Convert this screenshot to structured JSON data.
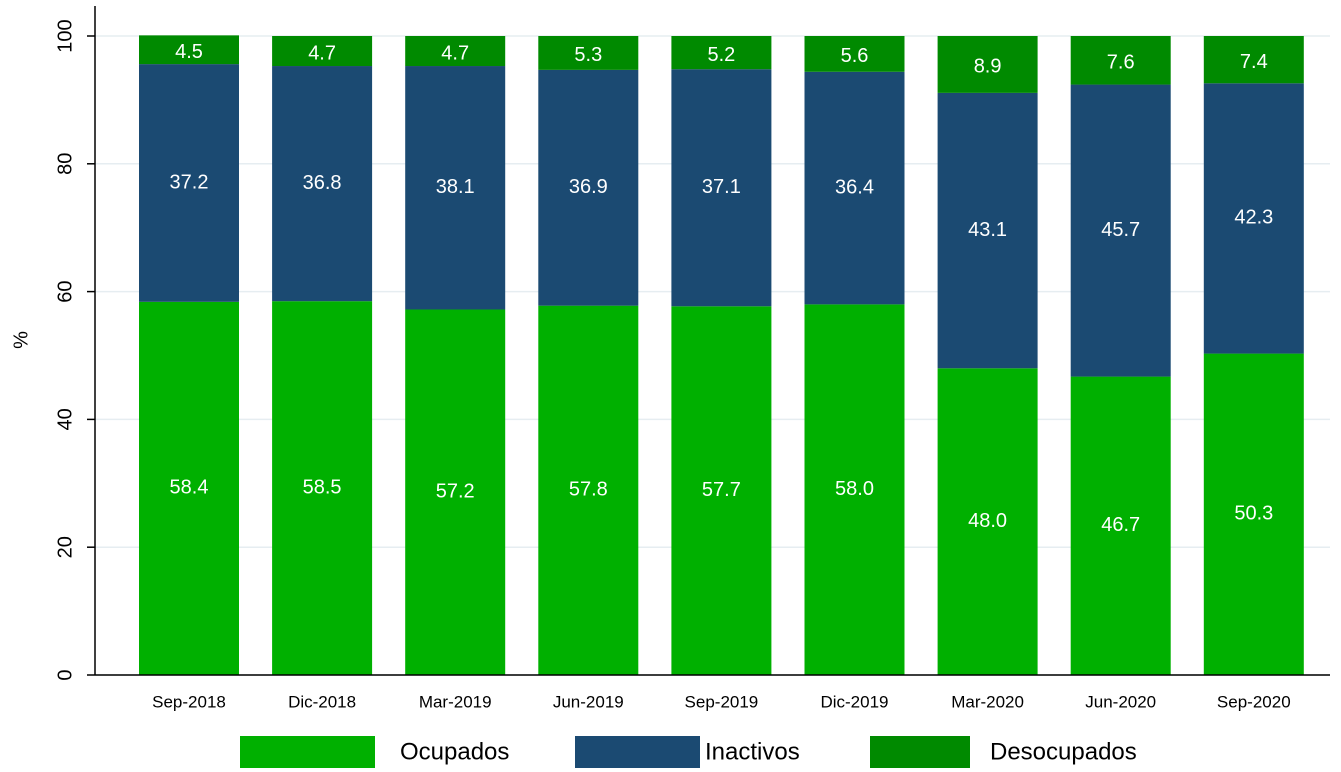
{
  "chart_data": {
    "type": "stacked_bar",
    "ylabel": "%",
    "categories": [
      "Sep-2018",
      "Dic-2018",
      "Mar-2019",
      "Jun-2019",
      "Sep-2019",
      "Dic-2019",
      "Mar-2020",
      "Jun-2020",
      "Sep-2020"
    ],
    "series": [
      {
        "name": "Ocupados",
        "color": "#00b000",
        "values": [
          58.4,
          58.5,
          57.2,
          57.8,
          57.7,
          58,
          48,
          46.7,
          50.3
        ],
        "value_labels": [
          "58.4",
          "58.5",
          "57.2",
          "57.8",
          "57.7",
          "58.0",
          "48.0",
          "46.7",
          "50.3"
        ]
      },
      {
        "name": "Inactivos",
        "color": "#1b4a72",
        "values": [
          37.2,
          36.8,
          38.1,
          36.9,
          37.1,
          36.4,
          43.1,
          45.7,
          42.3
        ],
        "value_labels": [
          "37.2",
          "36.8",
          "38.1",
          "36.9",
          "37.1",
          "36.4",
          "43.1",
          "45.7",
          "42.3"
        ]
      },
      {
        "name": "Desocupados",
        "color": "#008a00",
        "values": [
          4.5,
          4.7,
          4.7,
          5.3,
          5.2,
          5.6,
          8.9,
          7.6,
          7.4
        ],
        "value_labels": [
          "4.5",
          "4.7",
          "4.7",
          "5.3",
          "5.2",
          "5.6",
          "8.9",
          "7.6",
          "7.4"
        ]
      }
    ],
    "ylim": [
      0,
      100
    ],
    "yticks": [
      0,
      20,
      40,
      60,
      80,
      100
    ],
    "grid": true,
    "legend": "bottom"
  }
}
